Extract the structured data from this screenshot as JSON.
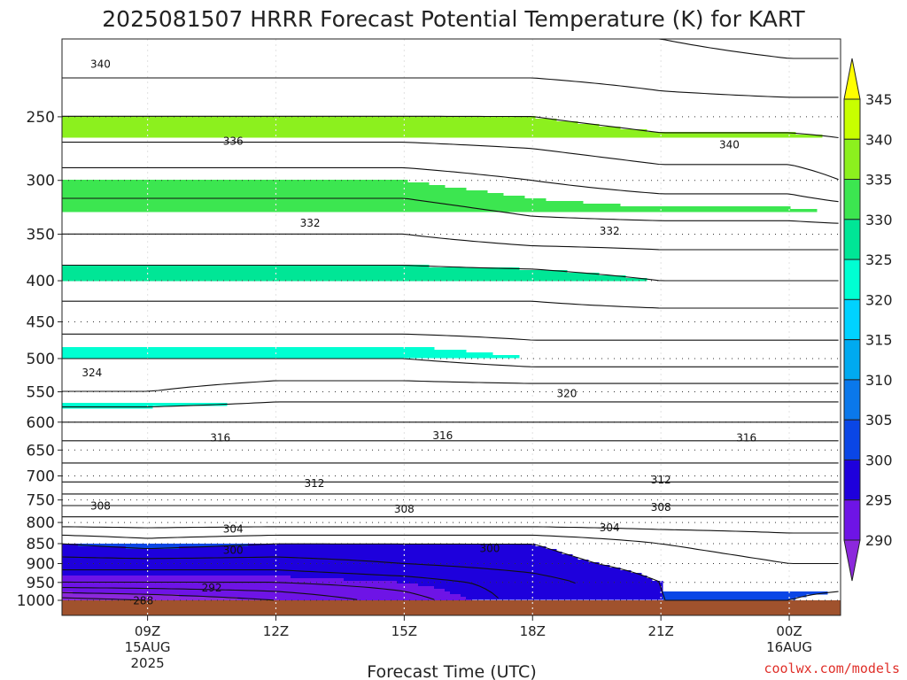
{
  "chart_data": {
    "type": "heatmap",
    "title": "2025081507 HRRR Forecast Potential Temperature (K) for KART",
    "xlabel": "Forecast Time (UTC)",
    "ylabel": "",
    "credit": "coolwx.com/models",
    "y_ticks": [
      250,
      300,
      350,
      400,
      450,
      500,
      550,
      600,
      650,
      700,
      750,
      800,
      850,
      900,
      950,
      1000
    ],
    "y_scale": "log-pressure (inverted)",
    "x_range_hours": [
      7.0,
      25.2
    ],
    "x_ticks": [
      {
        "hour": 9,
        "lines": [
          "09Z",
          "15AUG",
          "2025"
        ]
      },
      {
        "hour": 12,
        "lines": [
          "12Z"
        ]
      },
      {
        "hour": 15,
        "lines": [
          "15Z"
        ]
      },
      {
        "hour": 18,
        "lines": [
          "18Z"
        ]
      },
      {
        "hour": 21,
        "lines": [
          "21Z"
        ]
      },
      {
        "hour": 24,
        "lines": [
          "00Z",
          "16AUG"
        ]
      }
    ],
    "grid": true,
    "colorbar": {
      "ticks": [
        345,
        340,
        335,
        330,
        325,
        320,
        315,
        310,
        305,
        300,
        295,
        290
      ],
      "colors": [
        "#ffff00",
        "#c8ff00",
        "#8cf01e",
        "#3ce650",
        "#00e696",
        "#00ffd2",
        "#00d2ff",
        "#00aaf0",
        "#0a78eb",
        "#0a46e6",
        "#1e00dc",
        "#6e14e6",
        "#8c28dc"
      ]
    },
    "series": [
      {
        "x": [
          7.0,
          9.0,
          12.0,
          15.0,
          18.0,
          21.0,
          24.0,
          25.2
        ],
        "values_by_level": {
          "200": [
            344,
            344,
            344,
            344,
            344,
            344,
            345,
            345
          ],
          "250": [
            340,
            340,
            340,
            340,
            340,
            341,
            341,
            341
          ],
          "300": [
            335,
            335,
            335,
            335,
            336,
            337,
            337,
            338
          ],
          "350": [
            332,
            332,
            332,
            332,
            333,
            333,
            333,
            333
          ],
          "400": [
            329,
            329,
            329,
            329,
            329,
            330,
            330,
            330
          ],
          "450": [
            327,
            327,
            327,
            327,
            327,
            327,
            327,
            327
          ],
          "500": [
            324,
            324,
            324,
            324,
            325,
            325,
            325,
            325
          ],
          "550": [
            322,
            322,
            321,
            321,
            321,
            321,
            321,
            321
          ],
          "600": [
            318,
            318,
            318,
            318,
            318,
            318,
            318,
            318
          ],
          "650": [
            315,
            315,
            315,
            315,
            315,
            315,
            315,
            315
          ],
          "700": [
            313,
            313,
            313,
            313,
            313,
            313,
            313,
            313
          ],
          "750": [
            309,
            309,
            309,
            309,
            309,
            309,
            309,
            309
          ],
          "800": [
            305,
            305,
            305,
            305,
            305,
            305,
            305,
            305
          ],
          "850": [
            300,
            301,
            300,
            300,
            300,
            302,
            303,
            303
          ],
          "900": [
            297,
            297,
            297,
            298,
            299,
            301,
            302,
            302
          ],
          "950": [
            294,
            294,
            294,
            295,
            297,
            300,
            301,
            301
          ],
          "1000": [
            287,
            288,
            290,
            293,
            297,
            300,
            300,
            299
          ]
        }
      }
    ],
    "contour_labels": [
      {
        "text": "340",
        "hour": 7.9,
        "p": 215
      },
      {
        "text": "336",
        "hour": 11.0,
        "p": 268
      },
      {
        "text": "340",
        "hour": 22.6,
        "p": 271
      },
      {
        "text": "332",
        "hour": 12.8,
        "p": 339
      },
      {
        "text": "332",
        "hour": 19.8,
        "p": 347
      },
      {
        "text": "324",
        "hour": 7.7,
        "p": 521
      },
      {
        "text": "320",
        "hour": 18.8,
        "p": 553
      },
      {
        "text": "316",
        "hour": 10.7,
        "p": 628
      },
      {
        "text": "316",
        "hour": 15.9,
        "p": 624
      },
      {
        "text": "316",
        "hour": 23.0,
        "p": 628
      },
      {
        "text": "312",
        "hour": 12.9,
        "p": 715
      },
      {
        "text": "312",
        "hour": 21.0,
        "p": 708
      },
      {
        "text": "308",
        "hour": 7.9,
        "p": 763
      },
      {
        "text": "308",
        "hour": 15.0,
        "p": 770
      },
      {
        "text": "308",
        "hour": 21.0,
        "p": 766
      },
      {
        "text": "304",
        "hour": 11.0,
        "p": 815
      },
      {
        "text": "304",
        "hour": 19.8,
        "p": 812
      },
      {
        "text": "300",
        "hour": 11.0,
        "p": 866
      },
      {
        "text": "300",
        "hour": 17.0,
        "p": 862
      },
      {
        "text": "292",
        "hour": 10.5,
        "p": 965
      },
      {
        "text": "288",
        "hour": 8.9,
        "p": 1001
      }
    ]
  }
}
